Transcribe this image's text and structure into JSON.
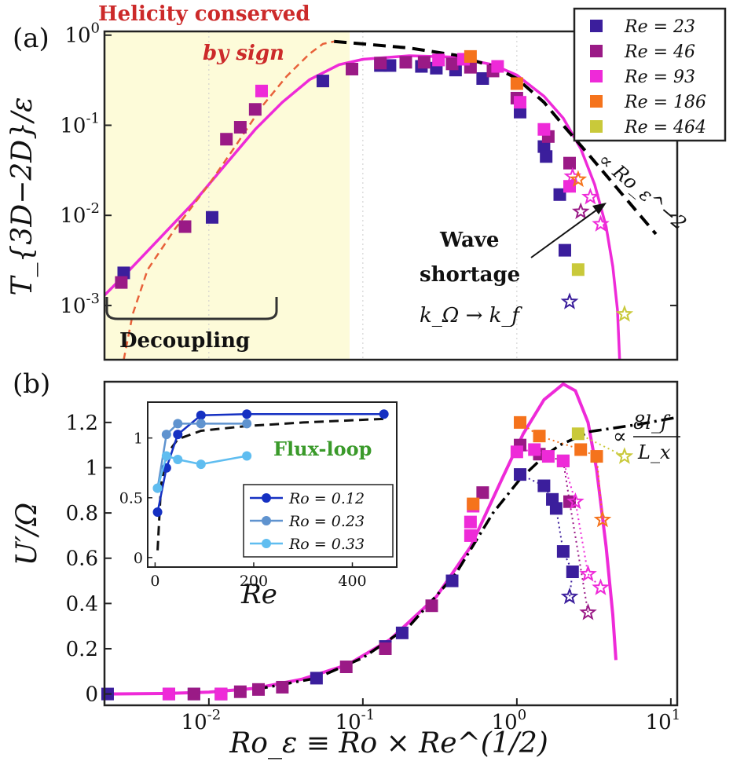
{
  "colors": {
    "re23": "#3b1e9c",
    "re46": "#9a1a86",
    "re93": "#ee2ad8",
    "re186": "#f5731c",
    "re464": "#c9c93a",
    "theory": "#ee2ad8",
    "dashed_red": "#e8613a",
    "dashed_black": "#000000",
    "shade": "#fdfbd9",
    "ro012": "#1530c2",
    "ro023": "#5f93cf",
    "ro033": "#5fbdf0",
    "red_text": "#cc2a2a",
    "green_text": "#3a9a2a"
  },
  "chart_data": [
    {
      "id": "a",
      "type": "scatter",
      "panel_label": "(a)",
      "ylabel": "T_{3D−2D}/ε",
      "xscale": "log",
      "yscale": "log",
      "xlim": [
        0.0021,
        11
      ],
      "ylim": [
        0.00025,
        1.1
      ],
      "y_ticks": [
        {
          "v": 1,
          "exp": "0"
        },
        {
          "v": 0.1,
          "exp": "-1"
        },
        {
          "v": 0.01,
          "exp": "-2"
        },
        {
          "v": 0.001,
          "exp": "-3"
        }
      ],
      "shade_range": [
        0.0021,
        0.082
      ],
      "legend": {
        "position": "top-right",
        "entries": [
          {
            "label": "Re = 23",
            "color_key": "re23"
          },
          {
            "label": "Re = 46",
            "color_key": "re46"
          },
          {
            "label": "Re = 93",
            "color_key": "re93"
          },
          {
            "label": "Re = 186",
            "color_key": "re186"
          },
          {
            "label": "Re = 464",
            "color_key": "re464"
          }
        ]
      },
      "series": [
        {
          "name": "Re = 23",
          "color_key": "re23",
          "points": [
            [
              0.0028,
              0.0023
            ],
            [
              0.0105,
              0.0095
            ],
            [
              0.055,
              0.31
            ],
            [
              0.13,
              0.46
            ],
            [
              0.15,
              0.46
            ],
            [
              0.24,
              0.45
            ],
            [
              0.3,
              0.43
            ],
            [
              0.4,
              0.41
            ],
            [
              0.6,
              0.33
            ],
            [
              1.05,
              0.14
            ],
            [
              1.5,
              0.058
            ],
            [
              1.55,
              0.045
            ],
            [
              1.9,
              0.017
            ],
            [
              2.05,
              0.0041
            ]
          ],
          "stars": [
            [
              2.2,
              0.0011
            ]
          ]
        },
        {
          "name": "Re = 46",
          "color_key": "re46",
          "points": [
            [
              0.0027,
              0.0018
            ],
            [
              0.007,
              0.0075
            ],
            [
              0.013,
              0.07
            ],
            [
              0.016,
              0.095
            ],
            [
              0.02,
              0.15
            ],
            [
              0.085,
              0.42
            ],
            [
              0.13,
              0.49
            ],
            [
              0.19,
              0.5
            ],
            [
              0.25,
              0.5
            ],
            [
              0.38,
              0.48
            ],
            [
              0.5,
              0.44
            ],
            [
              0.7,
              0.4
            ],
            [
              1.0,
              0.2
            ],
            [
              1.6,
              0.075
            ],
            [
              2.2,
              0.038
            ]
          ],
          "stars": [
            [
              2.6,
              0.011
            ]
          ]
        },
        {
          "name": "Re = 93",
          "color_key": "re93",
          "points": [
            [
              0.022,
              0.24
            ],
            [
              0.31,
              0.53
            ],
            [
              0.45,
              0.54
            ],
            [
              0.75,
              0.45
            ],
            [
              1.05,
              0.18
            ],
            [
              1.5,
              0.09
            ],
            [
              2.2,
              0.021
            ]
          ],
          "stars": [
            [
              2.3,
              0.027
            ],
            [
              3.0,
              0.016
            ],
            [
              3.5,
              0.008
            ]
          ]
        },
        {
          "name": "Re = 186",
          "color_key": "re186",
          "points": [
            [
              0.5,
              0.58
            ],
            [
              1.0,
              0.29
            ]
          ],
          "stars": [
            [
              2.5,
              0.025
            ]
          ]
        },
        {
          "name": "Re = 464",
          "color_key": "re464",
          "points": [
            [
              2.5,
              0.0025
            ]
          ],
          "stars": [
            [
              5.0,
              0.0008
            ]
          ]
        }
      ],
      "curves": {
        "theory": [
          [
            0.0021,
            0.0013
          ],
          [
            0.003,
            0.0024
          ],
          [
            0.005,
            0.006
          ],
          [
            0.008,
            0.014
          ],
          [
            0.012,
            0.032
          ],
          [
            0.02,
            0.09
          ],
          [
            0.03,
            0.18
          ],
          [
            0.045,
            0.32
          ],
          [
            0.07,
            0.47
          ],
          [
            0.1,
            0.54
          ],
          [
            0.2,
            0.59
          ],
          [
            0.4,
            0.57
          ],
          [
            0.7,
            0.47
          ],
          [
            1.0,
            0.36
          ],
          [
            1.5,
            0.21
          ],
          [
            2.0,
            0.12
          ],
          [
            2.6,
            0.055
          ],
          [
            3.2,
            0.022
          ],
          [
            3.8,
            0.0075
          ],
          [
            4.2,
            0.0027
          ],
          [
            4.5,
            0.0009
          ],
          [
            4.65,
            0.00025
          ]
        ],
        "red_dashed": [
          [
            0.0028,
            0.00025
          ],
          [
            0.0032,
            0.0008
          ],
          [
            0.004,
            0.0025
          ],
          [
            0.006,
            0.007
          ],
          [
            0.01,
            0.022
          ],
          [
            0.015,
            0.06
          ],
          [
            0.022,
            0.16
          ],
          [
            0.032,
            0.35
          ],
          [
            0.045,
            0.62
          ],
          [
            0.055,
            0.8
          ],
          [
            0.065,
            0.85
          ]
        ],
        "black_dashed": [
          [
            0.065,
            0.85
          ],
          [
            0.1,
            0.8
          ],
          [
            0.2,
            0.72
          ],
          [
            0.4,
            0.6
          ],
          [
            0.7,
            0.45
          ],
          [
            1.0,
            0.33
          ],
          [
            1.5,
            0.18
          ],
          [
            2.0,
            0.1
          ],
          [
            3.0,
            0.045
          ],
          [
            5.0,
            0.016
          ],
          [
            8.0,
            0.0062
          ]
        ]
      },
      "annotations": {
        "helicity": "Helicity conserved",
        "by_sign": "by sign",
        "scaling": "∝ Ro_ε^−2",
        "wave": "Wave",
        "shortage": "shortage",
        "k_relation": "k_Ω → k_f",
        "decoupling": "Decoupling"
      }
    },
    {
      "id": "b",
      "type": "scatter",
      "panel_label": "(b)",
      "ylabel": "U′/Ω",
      "xlabel": "Ro_ε ≡ Ro × Re^(1/2)",
      "xscale": "log",
      "xlim": [
        0.0021,
        11
      ],
      "ylim": [
        -0.05,
        1.38
      ],
      "y_ticks": [
        "0",
        "0.2",
        "0.4",
        "0.6",
        "0.8",
        "1",
        "1.2"
      ],
      "x_ticks": [
        {
          "v": 0.01,
          "exp": "-2"
        },
        {
          "v": 0.1,
          "exp": "-1"
        },
        {
          "v": 1,
          "exp": "0"
        },
        {
          "v": 10,
          "exp": "1"
        }
      ],
      "series": [
        {
          "name": "Re = 23",
          "color_key": "re23",
          "points": [
            [
              0.0022,
              0
            ],
            [
              0.0055,
              0
            ],
            [
              0.008,
              0
            ],
            [
              0.012,
              0
            ],
            [
              0.05,
              0.07
            ],
            [
              0.14,
              0.21
            ],
            [
              0.18,
              0.27
            ],
            [
              0.38,
              0.5
            ],
            [
              1.05,
              0.97
            ],
            [
              1.5,
              0.92
            ],
            [
              1.7,
              0.86
            ],
            [
              1.8,
              0.82
            ],
            [
              2.0,
              0.63
            ],
            [
              2.3,
              0.54
            ]
          ],
          "stars": [
            [
              2.2,
              0.43
            ]
          ]
        },
        {
          "name": "Re = 46",
          "color_key": "re46",
          "points": [
            [
              0.008,
              0
            ],
            [
              0.012,
              0
            ],
            [
              0.016,
              0.01
            ],
            [
              0.021,
              0.02
            ],
            [
              0.03,
              0.03
            ],
            [
              0.078,
              0.12
            ],
            [
              0.14,
              0.2
            ],
            [
              0.28,
              0.39
            ],
            [
              0.6,
              0.89
            ],
            [
              1.05,
              1.1
            ],
            [
              1.4,
              1.06
            ],
            [
              2.0,
              1.03
            ],
            [
              2.2,
              0.85
            ]
          ],
          "stars": [
            [
              2.9,
              0.36
            ]
          ]
        },
        {
          "name": "Re = 93",
          "color_key": "re93",
          "points": [
            [
              0.0055,
              0
            ],
            [
              0.012,
              0
            ],
            [
              0.5,
              0.7
            ],
            [
              0.5,
              0.76
            ],
            [
              0.52,
              0.83
            ],
            [
              1.0,
              1.07
            ],
            [
              1.3,
              1.08
            ],
            [
              1.6,
              1.05
            ],
            [
              2.0,
              1.03
            ]
          ],
          "stars": [
            [
              2.4,
              0.85
            ],
            [
              2.9,
              0.53
            ],
            [
              3.5,
              0.47
            ]
          ]
        },
        {
          "name": "Re = 186",
          "color_key": "re186",
          "points": [
            [
              0.52,
              0.84
            ],
            [
              1.05,
              1.2
            ],
            [
              1.4,
              1.14
            ],
            [
              2.6,
              1.08
            ],
            [
              3.3,
              1.05
            ]
          ],
          "stars": [
            [
              3.6,
              0.77
            ]
          ]
        },
        {
          "name": "Re = 464",
          "color_key": "re464",
          "points": [
            [
              2.5,
              1.15
            ]
          ],
          "stars": [
            [
              5.0,
              1.05
            ]
          ]
        }
      ],
      "curves": {
        "theory": [
          [
            0.0021,
            0
          ],
          [
            0.005,
            0.002
          ],
          [
            0.01,
            0.008
          ],
          [
            0.02,
            0.025
          ],
          [
            0.04,
            0.065
          ],
          [
            0.08,
            0.13
          ],
          [
            0.15,
            0.24
          ],
          [
            0.3,
            0.43
          ],
          [
            0.5,
            0.65
          ],
          [
            0.8,
            0.95
          ],
          [
            1.1,
            1.15
          ],
          [
            1.5,
            1.3
          ],
          [
            2.0,
            1.37
          ],
          [
            2.4,
            1.34
          ],
          [
            2.9,
            1.2
          ],
          [
            3.3,
            0.99
          ],
          [
            3.8,
            0.65
          ],
          [
            4.2,
            0.35
          ],
          [
            4.4,
            0.15
          ]
        ],
        "black_dashdot": [
          [
            0.02,
            0.02
          ],
          [
            0.05,
            0.07
          ],
          [
            0.1,
            0.16
          ],
          [
            0.2,
            0.3
          ],
          [
            0.4,
            0.53
          ],
          [
            0.7,
            0.8
          ],
          [
            1.05,
            0.95
          ],
          [
            1.5,
            1.05
          ],
          [
            1.9,
            1.1
          ],
          [
            3.0,
            1.16
          ],
          [
            6.0,
            1.19
          ],
          [
            10.5,
            1.22
          ]
        ]
      },
      "annotations": {
        "scaling_prefix": "∝",
        "scaling_num": "8l_f",
        "scaling_den": "L_x",
        "flux_loop": "Flux-loop"
      },
      "inset": {
        "type": "line",
        "xlabel": "Re",
        "xlim": [
          -15,
          490
        ],
        "ylim": [
          -0.08,
          1.3
        ],
        "x_ticks": [
          "0",
          "200",
          "400"
        ],
        "y_ticks": [
          "0",
          "0.5",
          "1"
        ],
        "legend": {
          "position": "bottom-right",
          "entries": [
            {
              "label": "Ro = 0.12",
              "color_key": "ro012"
            },
            {
              "label": "Ro = 0.23",
              "color_key": "ro023"
            },
            {
              "label": "Ro = 0.33",
              "color_key": "ro033"
            }
          ]
        },
        "series": [
          {
            "name": "Ro = 0.12",
            "color_key": "ro012",
            "points": [
              [
                5,
                0.38
              ],
              [
                23,
                0.75
              ],
              [
                46,
                1.03
              ],
              [
                93,
                1.19
              ],
              [
                186,
                1.2
              ],
              [
                464,
                1.2
              ]
            ]
          },
          {
            "name": "Ro = 0.23",
            "color_key": "ro023",
            "points": [
              [
                5,
                0.58
              ],
              [
                23,
                1.03
              ],
              [
                46,
                1.12
              ],
              [
                93,
                1.12
              ],
              [
                186,
                1.12
              ]
            ]
          },
          {
            "name": "Ro = 0.33",
            "color_key": "ro033",
            "points": [
              [
                5,
                0.58
              ],
              [
                23,
                0.85
              ],
              [
                46,
                0.82
              ],
              [
                93,
                0.78
              ],
              [
                186,
                0.85
              ]
            ]
          }
        ],
        "dashed": [
          [
            5,
            0.06
          ],
          [
            12,
            0.6
          ],
          [
            23,
            0.86
          ],
          [
            46,
            0.99
          ],
          [
            93,
            1.06
          ],
          [
            186,
            1.1
          ],
          [
            300,
            1.13
          ],
          [
            464,
            1.16
          ]
        ]
      }
    }
  ]
}
